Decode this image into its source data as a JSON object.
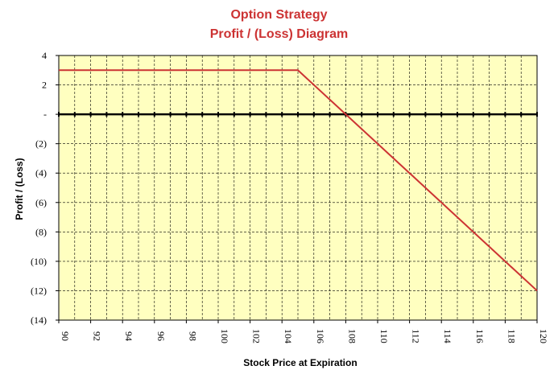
{
  "chart_data": {
    "type": "line",
    "title": "Option Strategy",
    "subtitle": "Profit / (Loss) Diagram",
    "xlabel": "Stock Price at Expiration",
    "ylabel": "Profit / (Loss)",
    "xlim": [
      90,
      120
    ],
    "ylim": [
      -14,
      4
    ],
    "x_ticks": [
      "90",
      "92",
      "94",
      "96",
      "98",
      "100",
      "102",
      "104",
      "106",
      "108",
      "110",
      "112",
      "114",
      "116",
      "118",
      "120"
    ],
    "y_ticks": [
      {
        "value": 4,
        "label": "4"
      },
      {
        "value": 2,
        "label": "2"
      },
      {
        "value": 0,
        "label": "-"
      },
      {
        "value": -2,
        "label": "(2)"
      },
      {
        "value": -4,
        "label": "(4)"
      },
      {
        "value": -6,
        "label": "(6)"
      },
      {
        "value": -8,
        "label": "(8)"
      },
      {
        "value": -10,
        "label": "(10)"
      },
      {
        "value": -12,
        "label": "(12)"
      },
      {
        "value": -14,
        "label": "(14)"
      }
    ],
    "grid": true,
    "series": [
      {
        "x": [
          90,
          105,
          120
        ],
        "y": [
          3,
          3,
          -12
        ],
        "color": "#cc3333"
      }
    ],
    "colors": {
      "plot_bg": "#ffffc0",
      "grid": "#000000",
      "line": "#cc3333",
      "title": "#cc3333"
    }
  }
}
